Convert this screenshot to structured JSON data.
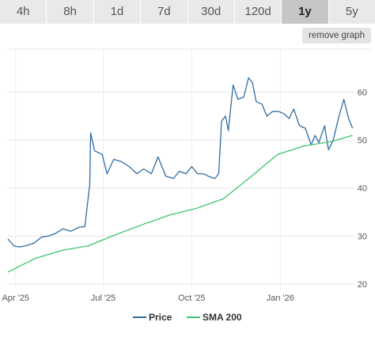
{
  "tabs": [
    {
      "label": "4h",
      "active": false
    },
    {
      "label": "8h",
      "active": false
    },
    {
      "label": "1d",
      "active": false
    },
    {
      "label": "7d",
      "active": false
    },
    {
      "label": "30d",
      "active": false
    },
    {
      "label": "120d",
      "active": false
    },
    {
      "label": "1y",
      "active": true
    },
    {
      "label": "5y",
      "active": false
    }
  ],
  "remove_graph_label": "remove graph",
  "chart_data": {
    "type": "line",
    "y_ticks": [
      "20",
      "30",
      "40",
      "50",
      "60"
    ],
    "y_tick_values": [
      20,
      30,
      40,
      50,
      60
    ],
    "ylim": [
      19,
      69
    ],
    "x_ticks": [
      "Apr '25",
      "Jul '25",
      "Oct '25",
      "Jan '26"
    ],
    "x_tick_values": [
      "2025-04-01",
      "2025-07-01",
      "2025-10-01",
      "2026-01-01"
    ],
    "xlim": [
      "2025-03-24",
      "2026-03-19"
    ],
    "grid": true,
    "legend_position": "bottom-center",
    "series": [
      {
        "name": "Price",
        "color": "#2e6da4",
        "points": [
          [
            "2025-03-24",
            29.4
          ],
          [
            "2025-03-30",
            28.0
          ],
          [
            "2025-04-05",
            27.7
          ],
          [
            "2025-04-12",
            28.0
          ],
          [
            "2025-04-20",
            28.5
          ],
          [
            "2025-04-28",
            29.8
          ],
          [
            "2025-05-05",
            30.0
          ],
          [
            "2025-05-12",
            30.5
          ],
          [
            "2025-05-20",
            31.5
          ],
          [
            "2025-05-28",
            31.0
          ],
          [
            "2025-06-06",
            31.8
          ],
          [
            "2025-06-12",
            32.0
          ],
          [
            "2025-06-16",
            39.0
          ],
          [
            "2025-06-17",
            40.5
          ],
          [
            "2025-06-18",
            51.5
          ],
          [
            "2025-06-22",
            47.8
          ],
          [
            "2025-06-30",
            47.0
          ],
          [
            "2025-07-05",
            43.0
          ],
          [
            "2025-07-12",
            46.0
          ],
          [
            "2025-07-20",
            45.5
          ],
          [
            "2025-07-28",
            44.5
          ],
          [
            "2025-08-05",
            43.0
          ],
          [
            "2025-08-12",
            44.0
          ],
          [
            "2025-08-20",
            43.0
          ],
          [
            "2025-08-27",
            46.5
          ],
          [
            "2025-09-04",
            42.5
          ],
          [
            "2025-09-12",
            42.0
          ],
          [
            "2025-09-18",
            43.5
          ],
          [
            "2025-09-25",
            43.0
          ],
          [
            "2025-10-01",
            44.5
          ],
          [
            "2025-10-07",
            43.0
          ],
          [
            "2025-10-13",
            43.0
          ],
          [
            "2025-10-18",
            42.5
          ],
          [
            "2025-10-25",
            42.0
          ],
          [
            "2025-10-29",
            43.0
          ],
          [
            "2025-11-01",
            54.0
          ],
          [
            "2025-11-05",
            55.0
          ],
          [
            "2025-11-08",
            52.0
          ],
          [
            "2025-11-13",
            61.5
          ],
          [
            "2025-11-18",
            58.5
          ],
          [
            "2025-11-24",
            59.0
          ],
          [
            "2025-11-29",
            63.0
          ],
          [
            "2025-12-03",
            62.0
          ],
          [
            "2025-12-07",
            58.0
          ],
          [
            "2025-12-13",
            57.5
          ],
          [
            "2025-12-18",
            55.0
          ],
          [
            "2025-12-24",
            56.0
          ],
          [
            "2025-12-30",
            56.0
          ],
          [
            "2026-01-05",
            55.5
          ],
          [
            "2026-01-10",
            54.5
          ],
          [
            "2026-01-15",
            56.5
          ],
          [
            "2026-01-21",
            53.0
          ],
          [
            "2026-01-27",
            52.5
          ],
          [
            "2026-02-02",
            49.0
          ],
          [
            "2026-02-06",
            51.0
          ],
          [
            "2026-02-10",
            49.5
          ],
          [
            "2026-02-16",
            53.0
          ],
          [
            "2026-02-20",
            48.0
          ],
          [
            "2026-02-25",
            50.0
          ],
          [
            "2026-03-03",
            55.0
          ],
          [
            "2026-03-08",
            58.5
          ],
          [
            "2026-03-13",
            54.5
          ],
          [
            "2026-03-17",
            52.5
          ]
        ]
      },
      {
        "name": "SMA 200",
        "color": "#3cc46e",
        "points": [
          [
            "2025-03-24",
            22.5
          ],
          [
            "2025-04-21",
            25.3
          ],
          [
            "2025-05-19",
            27.0
          ],
          [
            "2025-06-16",
            28.0
          ],
          [
            "2025-07-14",
            30.3
          ],
          [
            "2025-08-11",
            32.4
          ],
          [
            "2025-09-08",
            34.4
          ],
          [
            "2025-10-06",
            35.8
          ],
          [
            "2025-11-03",
            37.8
          ],
          [
            "2025-12-01",
            42.3
          ],
          [
            "2025-12-29",
            47.0
          ],
          [
            "2026-01-26",
            48.8
          ],
          [
            "2026-02-23",
            49.7
          ],
          [
            "2026-03-17",
            51.0
          ]
        ]
      }
    ]
  }
}
